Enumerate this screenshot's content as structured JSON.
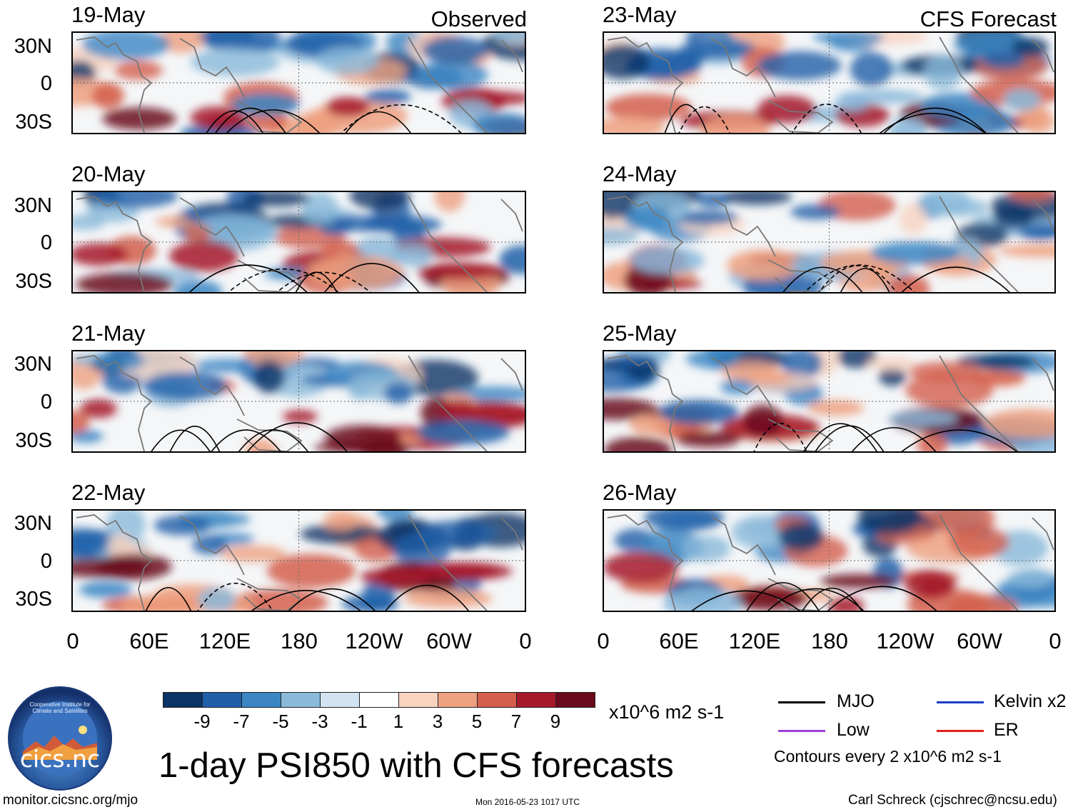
{
  "title": "1-day PSI850 with CFS forecasts",
  "observed_label": "Observed",
  "forecast_label": "CFS Forecast",
  "observed_dates": [
    "19-May",
    "20-May",
    "21-May",
    "22-May"
  ],
  "forecast_dates": [
    "23-May",
    "24-May",
    "25-May",
    "26-May"
  ],
  "lat_labels": [
    "30N",
    "0",
    "30S"
  ],
  "lon_labels": [
    "0",
    "60E",
    "120E",
    "180",
    "120W",
    "60W",
    "0"
  ],
  "colorbar": {
    "ticks": [
      "-9",
      "-7",
      "-5",
      "-3",
      "-1",
      "1",
      "3",
      "5",
      "7",
      "9"
    ],
    "colors": [
      "#0a3366",
      "#1f5fa8",
      "#3b86c3",
      "#8ab9da",
      "#d2e4f1",
      "#ffffff",
      "#f8d3c0",
      "#eea07f",
      "#d35f4c",
      "#a6192b",
      "#6b0a1c"
    ],
    "units": "x10^6 m2 s-1"
  },
  "legend": {
    "items": [
      {
        "label": "MJO",
        "color": "#000000"
      },
      {
        "label": "Kelvin x2",
        "color": "#1a3ec8"
      },
      {
        "label": "Low",
        "color": "#a03ed8"
      },
      {
        "label": "ER",
        "color": "#e02020"
      }
    ],
    "contour_note": "Contours every 2 x10^6 m2 s-1"
  },
  "logo_text": "cics.nc",
  "logo_ring_text": "Cooperative Institute for Climate and Satellites",
  "footer": {
    "left": "monitor.cicsnc.org/mjo",
    "center": "Mon 2016-05-23 1017 UTC",
    "right": "Carl Schreck (cjschrec@ncsu.edu)"
  }
}
